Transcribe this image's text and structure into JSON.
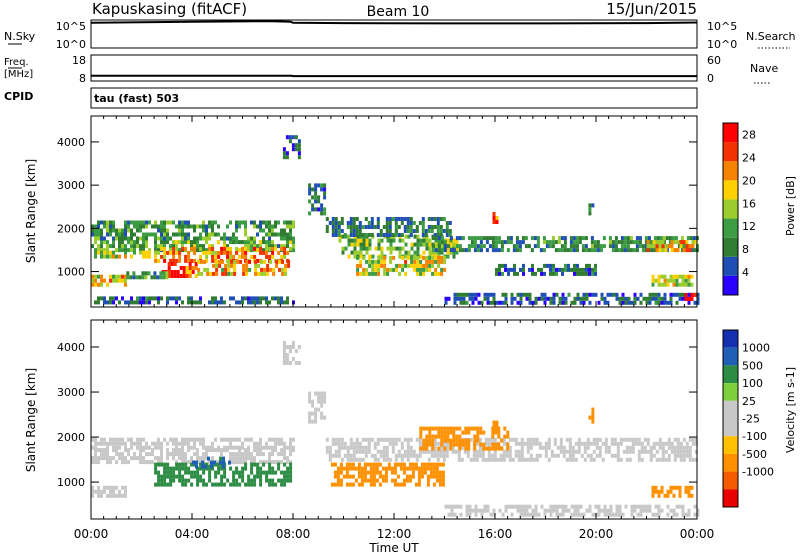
{
  "header": {
    "site": "Kapuskasing (fitACF)",
    "beam": "Beam 10",
    "date": "15/Jun/2015"
  },
  "status": {
    "nsky_label": "N.Sky",
    "nsky_top": "10^5",
    "nsky_bottom": "10^0",
    "nsearch_label": "N.Search",
    "nsearch_top": "10^5",
    "nsearch_bottom": "10^0",
    "freq_label": "Freq.",
    "freq_unit": "[MHz]",
    "freq_top": "18",
    "freq_bottom": "8",
    "nave_label": "Nave",
    "nave_top": "60",
    "nave_bottom": "0",
    "cpid_label": "CPID",
    "cpid_value": "tau (fast) 503"
  },
  "colors": {
    "power": [
      "#2a00ff",
      "#1f4fb5",
      "#2f7c32",
      "#3c9c44",
      "#9ccd2f",
      "#ffd000",
      "#f58200",
      "#f23000",
      "#ff0000"
    ],
    "velocity": [
      "#e80000",
      "#f55a00",
      "#ff9000",
      "#ffc000",
      "#c8c8c8",
      "#c8c8c8",
      "#7fcf3c",
      "#2c8c44",
      "#1f5fb5",
      "#1430b0"
    ]
  },
  "chart_data": [
    {
      "type": "line",
      "name": "status-strips",
      "x_ticks": [
        "00:00",
        "04:00",
        "08:00",
        "12:00",
        "16:00",
        "20:00",
        "00:00"
      ],
      "series": [
        {
          "name": "N.Sky",
          "x_hours": [
            0,
            2,
            4,
            6,
            7,
            7.9,
            8,
            10,
            14,
            18,
            22,
            24
          ],
          "log_values": [
            4.5,
            4.6,
            4.7,
            4.75,
            4.8,
            4.7,
            4.5,
            4.45,
            4.4,
            4.4,
            4.45,
            4.55
          ]
        },
        {
          "name": "Freq.",
          "x_hours": [
            0,
            7.95,
            8,
            24
          ],
          "values": [
            10,
            10,
            9.9,
            9.9
          ]
        }
      ]
    },
    {
      "type": "heatmap",
      "name": "power-panel",
      "xlabel": "Time UT",
      "ylabel": "Slant Range [km]",
      "x_range_hours": [
        0,
        24
      ],
      "y_range_km": [
        180,
        4600
      ],
      "y_ticks": [
        1000,
        2000,
        3000,
        4000
      ],
      "x_ticks": [
        "00:00",
        "04:00",
        "08:00",
        "12:00",
        "16:00",
        "20:00",
        "00:00"
      ],
      "colorbar_label": "Power [dB]",
      "colorbar_ticks": [
        4,
        8,
        12,
        16,
        20,
        24,
        28
      ],
      "colorbar_range": [
        0,
        30
      ],
      "regions": [
        {
          "t0": 0.0,
          "t1": 8.0,
          "r0": 1450,
          "r1": 1720,
          "value": 12
        },
        {
          "t0": 0.0,
          "t1": 2.5,
          "r0": 1300,
          "r1": 1450,
          "value": 16
        },
        {
          "t0": 2.5,
          "t1": 7.9,
          "r0": 1200,
          "r1": 1500,
          "value": 21
        },
        {
          "t0": 2.8,
          "t1": 4.2,
          "r0": 850,
          "r1": 1200,
          "value": 26
        },
        {
          "t0": 4.2,
          "t1": 7.8,
          "r0": 900,
          "r1": 1200,
          "value": 20
        },
        {
          "t0": 0.0,
          "t1": 1.4,
          "r0": 650,
          "r1": 850,
          "value": 18
        },
        {
          "t0": 0.0,
          "t1": 8.0,
          "r0": 1720,
          "r1": 2100,
          "value": 10
        },
        {
          "t0": 1.4,
          "t1": 3.0,
          "r0": 820,
          "r1": 1000,
          "value": 10
        },
        {
          "t0": 0.0,
          "t1": 8.0,
          "r0": 240,
          "r1": 420,
          "value": 6
        },
        {
          "t0": 8.6,
          "t1": 9.2,
          "r0": 2300,
          "r1": 3000,
          "value": 7
        },
        {
          "t0": 7.6,
          "t1": 8.2,
          "r0": 3600,
          "r1": 4100,
          "value": 6
        },
        {
          "t0": 9.8,
          "t1": 14.5,
          "r0": 1300,
          "r1": 1800,
          "value": 13
        },
        {
          "t0": 10.5,
          "t1": 14.0,
          "r0": 900,
          "r1": 1300,
          "value": 17
        },
        {
          "t0": 9.3,
          "t1": 14.2,
          "r0": 1800,
          "r1": 2200,
          "value": 8
        },
        {
          "t0": 13.5,
          "t1": 24.0,
          "r0": 1450,
          "r1": 1750,
          "value": 9
        },
        {
          "t0": 14.0,
          "t1": 24.0,
          "r0": 230,
          "r1": 430,
          "value": 6
        },
        {
          "t0": 16.0,
          "t1": 20.0,
          "r0": 900,
          "r1": 1100,
          "value": 7
        },
        {
          "t0": 15.9,
          "t1": 16.1,
          "r0": 2100,
          "r1": 2300,
          "value": 24
        },
        {
          "t0": 22.0,
          "t1": 24.0,
          "r0": 1450,
          "r1": 1700,
          "value": 19
        },
        {
          "t0": 22.2,
          "t1": 23.8,
          "r0": 650,
          "r1": 900,
          "value": 17
        },
        {
          "t0": 23.5,
          "t1": 23.9,
          "r0": 320,
          "r1": 480,
          "value": 28
        },
        {
          "t0": 19.7,
          "t1": 19.9,
          "r0": 2300,
          "r1": 2600,
          "value": 9
        }
      ]
    },
    {
      "type": "heatmap",
      "name": "velocity-panel",
      "xlabel": "Time UT",
      "ylabel": "Slant Range [km]",
      "x_range_hours": [
        0,
        24
      ],
      "y_range_km": [
        180,
        4600
      ],
      "y_ticks": [
        1000,
        2000,
        3000,
        4000
      ],
      "x_ticks": [
        "00:00",
        "04:00",
        "08:00",
        "12:00",
        "16:00",
        "20:00",
        "00:00"
      ],
      "colorbar_label": "Velocity [m s-1]",
      "colorbar_ticks": [
        "1000",
        "500",
        "100",
        "25",
        "-25",
        "-100",
        "-500",
        "-1000"
      ],
      "regions": [
        {
          "t0": 0.0,
          "t1": 8.0,
          "r0": 1400,
          "r1": 1720,
          "value": 0
        },
        {
          "t0": 0.0,
          "t1": 8.0,
          "r0": 1720,
          "r1": 1950,
          "value": 0
        },
        {
          "t0": 2.5,
          "t1": 7.9,
          "r0": 900,
          "r1": 1400,
          "value": 180
        },
        {
          "t0": 4.0,
          "t1": 5.5,
          "r0": 1300,
          "r1": 1500,
          "value": 600
        },
        {
          "t0": 0.0,
          "t1": 1.4,
          "r0": 650,
          "r1": 850,
          "value": 0
        },
        {
          "t0": 8.6,
          "t1": 9.2,
          "r0": 2300,
          "r1": 3000,
          "value": 0
        },
        {
          "t0": 7.6,
          "t1": 8.2,
          "r0": 3600,
          "r1": 4100,
          "value": 0
        },
        {
          "t0": 9.3,
          "t1": 24.0,
          "r0": 1450,
          "r1": 1950,
          "value": 0
        },
        {
          "t0": 9.5,
          "t1": 14.0,
          "r0": 900,
          "r1": 1400,
          "value": -250
        },
        {
          "t0": 13.0,
          "t1": 16.5,
          "r0": 1700,
          "r1": 2200,
          "value": -150
        },
        {
          "t0": 15.9,
          "t1": 16.1,
          "r0": 2100,
          "r1": 2300,
          "value": -200
        },
        {
          "t0": 14.0,
          "t1": 24.0,
          "r0": 230,
          "r1": 430,
          "value": 0
        },
        {
          "t0": 22.2,
          "t1": 23.8,
          "r0": 650,
          "r1": 900,
          "value": -200
        },
        {
          "t0": 19.7,
          "t1": 19.9,
          "r0": 2300,
          "r1": 2600,
          "value": -150
        }
      ]
    }
  ]
}
